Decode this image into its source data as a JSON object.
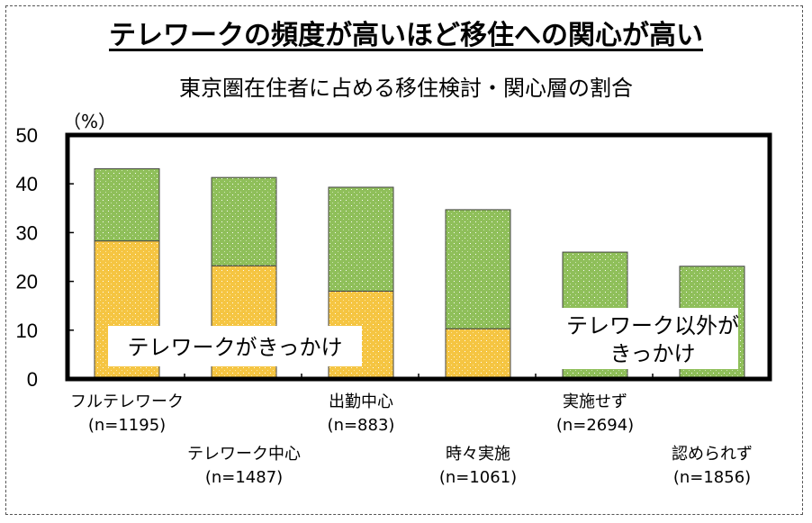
{
  "chart_data": {
    "type": "bar",
    "stacked": true,
    "title": "テレワークの頻度が高いほど移住への関心が高い",
    "subtitle": "東京圏在住者に占める移住検討・関心層の割合",
    "ylabel": "（%）",
    "ylim": [
      0,
      50
    ],
    "yticks": [
      "0",
      "10",
      "20",
      "30",
      "40",
      "50"
    ],
    "categories": [
      "フルテレワーク",
      "テレワーク中心",
      "出勤中心",
      "時々実施",
      "実施せず",
      "認められず"
    ],
    "sample_sizes": [
      "(n=1195)",
      "(n=1487)",
      "(n=883)",
      "(n=1061)",
      "(n=2694)",
      "(n=1856)"
    ],
    "series": [
      {
        "name": "テレワークがきっかけ",
        "color": "#f5c542",
        "values": [
          28.3,
          23.2,
          18.0,
          10.3,
          0,
          0
        ]
      },
      {
        "name": "テレワーク以外がきっかけ",
        "color": "#8fbf5a",
        "values": [
          14.8,
          18.1,
          21.3,
          24.4,
          26.0,
          23.1
        ]
      }
    ],
    "annotations": [
      "テレワークがきっかけ",
      "テレワーク以外が",
      "きっかけ"
    ]
  }
}
